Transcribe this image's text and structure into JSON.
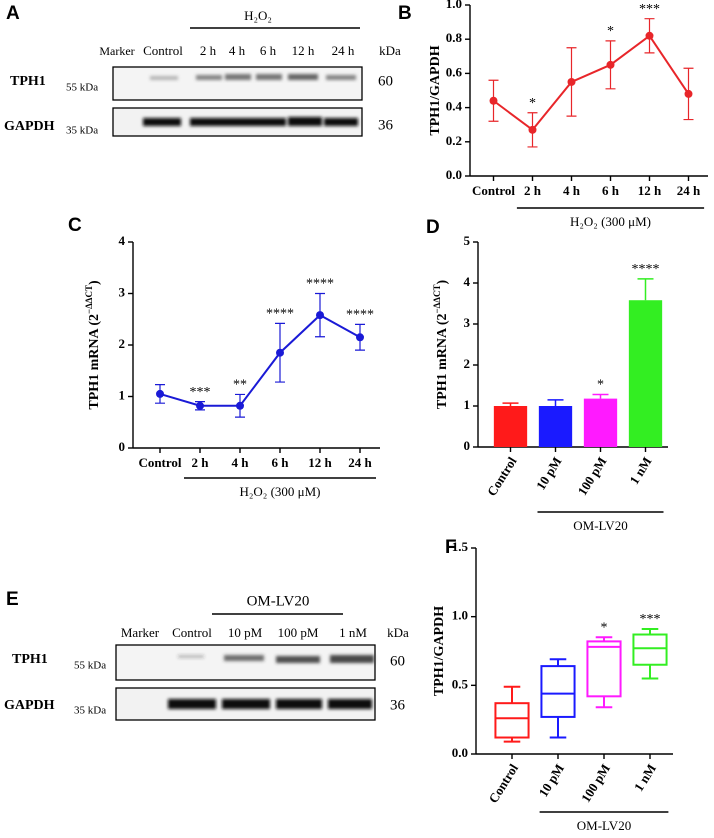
{
  "panel_labels": [
    "A",
    "B",
    "C",
    "D",
    "E",
    "F"
  ],
  "blot_a": {
    "group_label": "H₂O₂",
    "lanes": [
      "Marker",
      "Control",
      "2 h",
      "4 h",
      "6 h",
      "12 h",
      "24 h"
    ],
    "unit": "kDa",
    "rows": [
      {
        "name": "TPH1",
        "marker": "55 kDa",
        "size": "60"
      },
      {
        "name": "GAPDH",
        "marker": "35 kDa",
        "size": "36"
      }
    ]
  },
  "blot_e": {
    "group_label": "OM-LV20",
    "lanes": [
      "Marker",
      "Control",
      "10 pM",
      "100 pM",
      "1 nM"
    ],
    "unit": "kDa",
    "rows": [
      {
        "name": "TPH1",
        "marker": "55 kDa",
        "size": "60"
      },
      {
        "name": "GAPDH",
        "marker": "35 kDa",
        "size": "36"
      }
    ]
  },
  "chart_data": [
    {
      "type": "line",
      "y_label": "TPH1/GAPDH",
      "group_label": "H₂O₂ (300 μM)",
      "color": "#e8262a",
      "categories": [
        "Control",
        "2 h",
        "4 h",
        "6 h",
        "12 h",
        "24 h"
      ],
      "values": [
        0.44,
        0.27,
        0.55,
        0.65,
        0.82,
        0.48
      ],
      "errors": [
        0.12,
        0.1,
        0.2,
        0.14,
        0.1,
        0.15
      ],
      "annotations": [
        null,
        "*",
        null,
        "*",
        "***",
        null
      ],
      "ylim": [
        0,
        1
      ],
      "yticks": [
        {
          "value": 0,
          "label": "0.0"
        },
        0.2,
        0.4,
        0.6,
        0.8,
        {
          "value": 1,
          "label": "1.0"
        }
      ]
    },
    {
      "type": "line",
      "y_label": "TPH1 mRNA (2",
      "y_label_sup": "−ΔΔCT",
      "y_label_tail": ")",
      "group_label": "H₂O₂ (300 μM)",
      "color": "#1a1ad6",
      "categories": [
        "Control",
        "2 h",
        "4 h",
        "6 h",
        "12 h",
        "24 h"
      ],
      "values": [
        1.05,
        0.82,
        0.82,
        1.85,
        2.58,
        2.15
      ],
      "errors": [
        0.18,
        0.08,
        0.22,
        0.57,
        0.42,
        0.25
      ],
      "annotations": [
        null,
        "***",
        "**",
        "****",
        "****",
        "****"
      ],
      "ylim": [
        0,
        4
      ],
      "yticks": [
        0,
        1,
        2,
        3,
        4
      ]
    },
    {
      "type": "bar",
      "y_label": "TPH1 mRNA (2",
      "y_label_sup": "−ΔΔCT",
      "y_label_tail": ")",
      "group_label": "OM-LV20",
      "categories": [
        "Control",
        "10 pM",
        "100 pM",
        "1 nM"
      ],
      "colors": [
        "#ff1a1a",
        "#1a1aff",
        "#ff1aff",
        "#33ee22"
      ],
      "values": [
        1.0,
        1.0,
        1.18,
        3.58
      ],
      "errors": [
        0.07,
        0.15,
        0.1,
        0.52
      ],
      "annotations": [
        null,
        null,
        "*",
        "****"
      ],
      "ylim": [
        0,
        5
      ],
      "yticks": [
        0,
        1,
        2,
        3,
        4,
        5
      ]
    },
    {
      "type": "box",
      "y_label": "TPH1/GAPDH",
      "group_label": "OM-LV20",
      "categories": [
        "Control",
        "10 pM",
        "100 pM",
        "1 nM"
      ],
      "colors": [
        "#ff1a1a",
        "#1a1aff",
        "#ff1aff",
        "#33ee22"
      ],
      "min": [
        0.09,
        0.12,
        0.34,
        0.55
      ],
      "q1": [
        0.12,
        0.27,
        0.42,
        0.65
      ],
      "median": [
        0.26,
        0.44,
        0.78,
        0.77
      ],
      "q3": [
        0.37,
        0.64,
        0.82,
        0.87
      ],
      "max": [
        0.49,
        0.69,
        0.85,
        0.91
      ],
      "annotations": [
        null,
        null,
        "*",
        "***"
      ],
      "ylim": [
        0,
        1.5
      ],
      "yticks": [
        {
          "value": 0,
          "label": "0.0"
        },
        0.5,
        {
          "value": 1,
          "label": "1.0"
        },
        1.5
      ]
    }
  ]
}
